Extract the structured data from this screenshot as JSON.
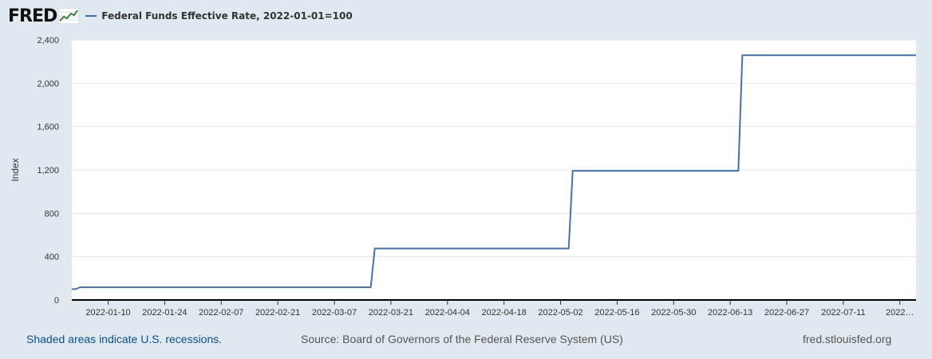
{
  "header": {
    "logo_text": "FRED",
    "logo_icon": "chart-line-icon",
    "legend_label": "Federal Funds Effective Rate, 2022-01-01=100"
  },
  "footer": {
    "recession_note": "Shaded areas indicate U.S. recessions.",
    "source": "Source: Board of Governors of the Federal Reserve System (US)",
    "url": "fred.stlouisfed.org"
  },
  "colors": {
    "series": "#4572a7",
    "background": "#e1e9f0",
    "plot_background": "#ffffff",
    "recession_link": "#0b4f8a"
  },
  "chart_data": {
    "type": "line",
    "title": "",
    "xlabel": "",
    "ylabel": "Index",
    "ylim": [
      0,
      2400
    ],
    "xlim": [
      "2022-01-01",
      "2022-07-29"
    ],
    "yticks": [
      0,
      400,
      800,
      1200,
      1600,
      2000,
      2400
    ],
    "ytick_labels": [
      "0",
      "400",
      "800",
      "1,200",
      "1,600",
      "2,000",
      "2,400"
    ],
    "xticks": [
      "2022-01-10",
      "2022-01-24",
      "2022-02-07",
      "2022-02-21",
      "2022-03-07",
      "2022-03-21",
      "2022-04-04",
      "2022-04-18",
      "2022-05-02",
      "2022-05-16",
      "2022-05-30",
      "2022-06-13",
      "2022-06-27",
      "2022-07-11",
      "2022-07-25"
    ],
    "xtick_labels": [
      "2022-01-10",
      "2022-01-24",
      "2022-02-07",
      "2022-02-21",
      "2022-03-07",
      "2022-03-21",
      "2022-04-04",
      "2022-04-18",
      "2022-05-02",
      "2022-05-16",
      "2022-05-30",
      "2022-06-13",
      "2022-06-27",
      "2022-07-11",
      "2022…"
    ],
    "grid": true,
    "series": [
      {
        "name": "Federal Funds Effective Rate, 2022-01-01=100",
        "color": "#4572a7",
        "points": [
          [
            "2022-01-01",
            100
          ],
          [
            "2022-01-02",
            100
          ],
          [
            "2022-01-03",
            117
          ],
          [
            "2022-03-16",
            117
          ],
          [
            "2022-03-17",
            475
          ],
          [
            "2022-05-04",
            475
          ],
          [
            "2022-05-05",
            1192
          ],
          [
            "2022-06-15",
            1192
          ],
          [
            "2022-06-16",
            2258
          ],
          [
            "2022-07-29",
            2258
          ]
        ]
      }
    ]
  }
}
